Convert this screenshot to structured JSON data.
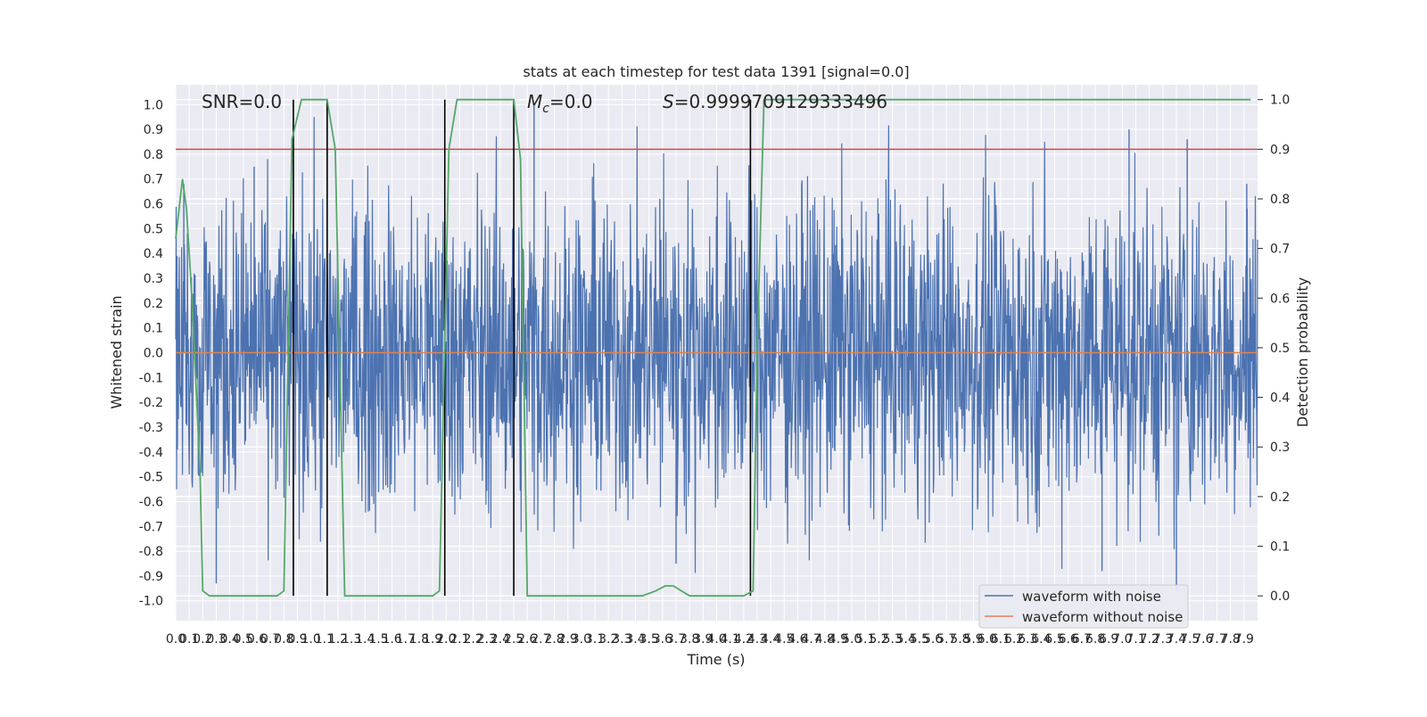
{
  "chart_data": {
    "type": "line",
    "title": "stats at each timestep for test data 1391 [signal=0.0]",
    "xlabel": "Time (s)",
    "ylabel": "Whitened strain",
    "y2label": "Detection probability",
    "xlim": [
      0.0,
      8.0
    ],
    "ylim": [
      -1.08,
      1.08
    ],
    "y2lim": [
      -0.05,
      1.03
    ],
    "x_ticks": [
      "0.0",
      "0.1",
      "0.2",
      "0.3",
      "0.4",
      "0.5",
      "0.6",
      "0.7",
      "0.8",
      "0.9",
      "1.0",
      "1.1",
      "1.2",
      "1.3",
      "1.4",
      "1.5",
      "1.6",
      "1.7",
      "1.8",
      "1.9",
      "2.0",
      "2.1",
      "2.2",
      "2.3",
      "2.4",
      "2.5",
      "2.6",
      "2.7",
      "2.8",
      "2.9",
      "3.0",
      "3.1",
      "3.2",
      "3.3",
      "3.4",
      "3.5",
      "3.6",
      "3.7",
      "3.8",
      "3.9",
      "4.0",
      "4.1",
      "4.2",
      "4.3",
      "4.4",
      "4.5",
      "4.6",
      "4.7",
      "4.8",
      "4.9",
      "5.0",
      "5.1",
      "5.2",
      "5.3",
      "5.4",
      "5.5",
      "5.6",
      "5.7",
      "5.8",
      "5.9",
      "6.0",
      "6.1",
      "6.2",
      "6.3",
      "6.4",
      "6.5",
      "6.6",
      "6.7",
      "6.8",
      "6.9",
      "7.0",
      "7.1",
      "7.2",
      "7.3",
      "7.4",
      "7.5",
      "7.6",
      "7.7",
      "7.8",
      "7.9"
    ],
    "y_ticks": [
      "1.0",
      "0.9",
      "0.8",
      "0.7",
      "0.6",
      "0.5",
      "0.4",
      "0.3",
      "0.2",
      "0.1",
      "0.0",
      "-0.1",
      "-0.2",
      "-0.3",
      "-0.4",
      "-0.5",
      "-0.6",
      "-0.7",
      "-0.8",
      "-0.9",
      "-1.0"
    ],
    "y2_ticks": [
      "1.0",
      "0.9",
      "0.8",
      "0.7",
      "0.6",
      "0.5",
      "0.4",
      "0.3",
      "0.2",
      "0.1",
      "0.0"
    ],
    "grid": true,
    "legend_position": "lower-right",
    "series": [
      {
        "name": "waveform with noise",
        "color": "#4c72b0",
        "description_values": {
          "typical_range": [
            -0.45,
            0.45
          ],
          "peaks": [
            [
              0.06,
              0.68
            ],
            [
              0.58,
              0.75
            ],
            [
              2.65,
              1.0
            ],
            [
              3.58,
              0.62
            ],
            [
              7.05,
              0.9
            ],
            [
              7.48,
              0.86
            ],
            [
              0.3,
              -0.93
            ],
            [
              3.7,
              -0.85
            ],
            [
              6.85,
              -0.88
            ],
            [
              7.4,
              -0.96
            ],
            [
              7.92,
              0.68
            ]
          ]
        }
      },
      {
        "name": "waveform without noise",
        "color": "#dd8452",
        "values": [
          [
            0.0,
            0.0
          ],
          [
            8.0,
            0.0
          ]
        ]
      },
      {
        "name": "",
        "color": "#55a868",
        "axis": "right",
        "values": [
          [
            0.0,
            0.72
          ],
          [
            0.05,
            0.84
          ],
          [
            0.08,
            0.78
          ],
          [
            0.12,
            0.6
          ],
          [
            0.18,
            0.25
          ],
          [
            0.2,
            0.01
          ],
          [
            0.25,
            0.0
          ],
          [
            0.75,
            0.0
          ],
          [
            0.8,
            0.01
          ],
          [
            0.86,
            0.92
          ],
          [
            0.93,
            1.0
          ],
          [
            1.12,
            1.0
          ],
          [
            1.18,
            0.9
          ],
          [
            1.25,
            0.0
          ],
          [
            1.9,
            0.0
          ],
          [
            1.95,
            0.01
          ],
          [
            2.02,
            0.9
          ],
          [
            2.08,
            1.0
          ],
          [
            2.5,
            1.0
          ],
          [
            2.55,
            0.88
          ],
          [
            2.6,
            0.0
          ],
          [
            3.45,
            0.0
          ],
          [
            3.55,
            0.01
          ],
          [
            3.62,
            0.02
          ],
          [
            3.68,
            0.02
          ],
          [
            3.74,
            0.01
          ],
          [
            3.8,
            0.0
          ],
          [
            4.2,
            0.0
          ],
          [
            4.27,
            0.01
          ],
          [
            4.3,
            0.5
          ],
          [
            4.35,
            1.0
          ],
          [
            7.95,
            1.0
          ]
        ]
      }
    ],
    "threshold_lines": [
      {
        "axis": "right",
        "value": 0.9,
        "color": "#c44e52"
      }
    ],
    "vertical_lines_x": [
      0.87,
      1.12,
      1.99,
      2.5,
      4.25
    ],
    "annotations": [
      {
        "text": "SNR=0.0"
      },
      {
        "text": "M_c=0.0",
        "base": "M",
        "sub": "c",
        "rest": "=0.0"
      },
      {
        "text": "S=0.9999709129333496",
        "base": "S",
        "rest": "=0.9999709129333496"
      }
    ]
  }
}
